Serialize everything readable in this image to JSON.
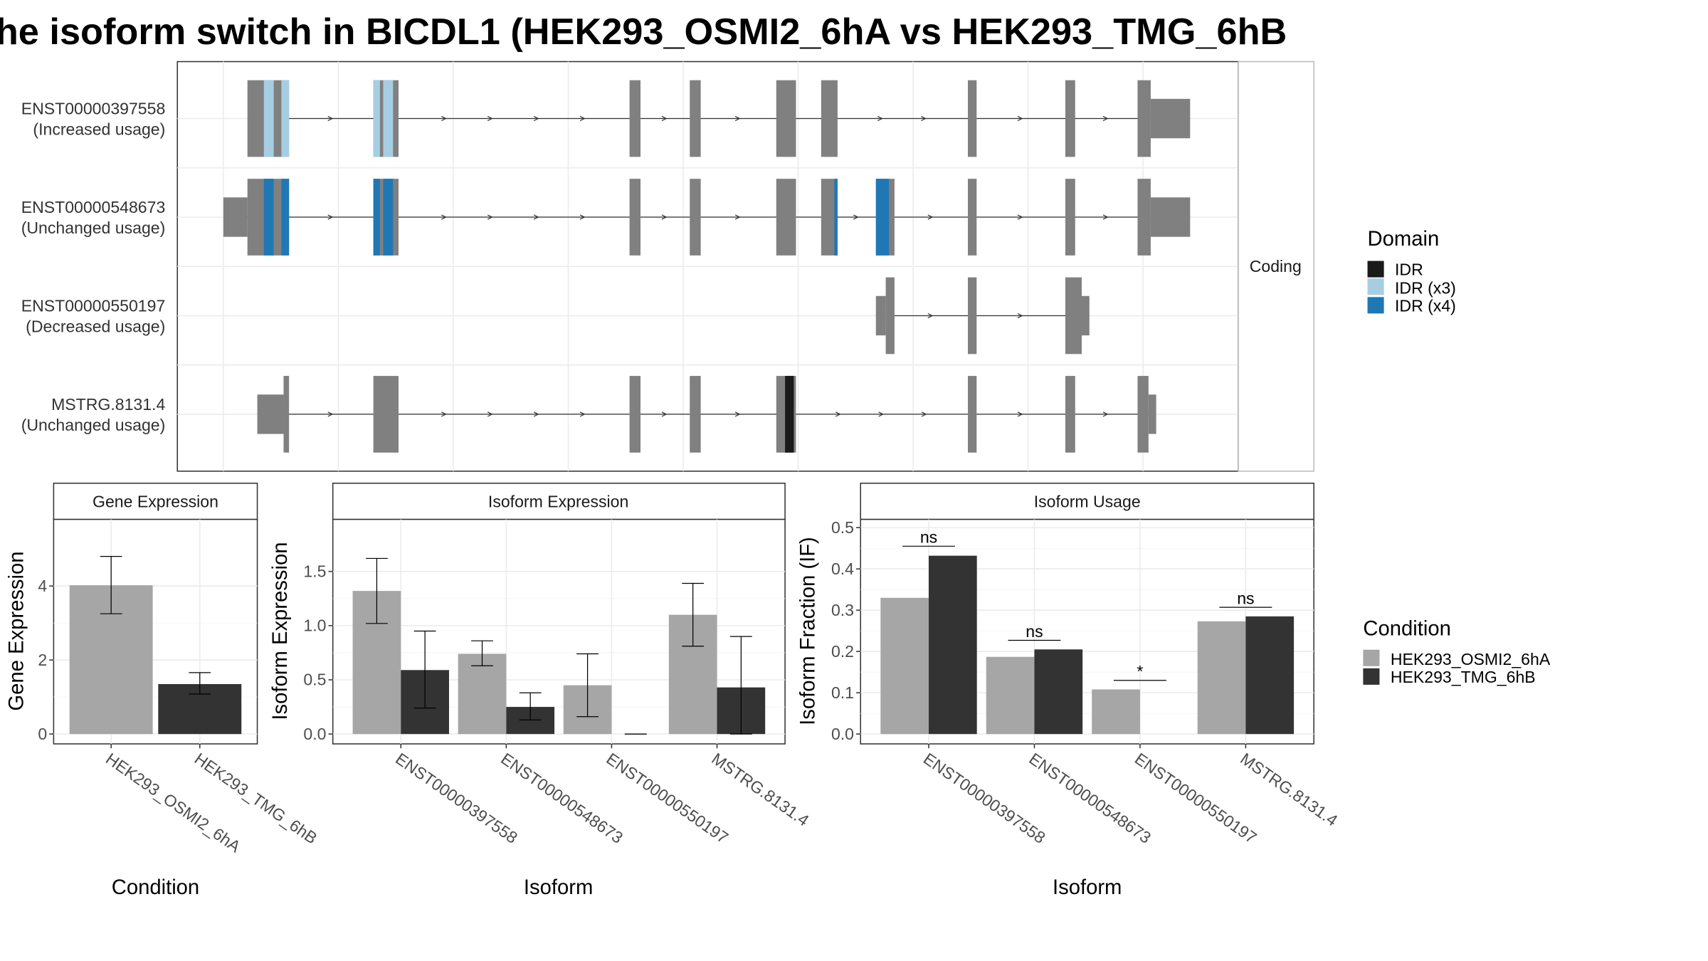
{
  "title": "he isoform switch in BICDL1 (HEK293_OSMI2_6hA vs HEK293_TMG_6hB",
  "colors": {
    "condition_a": "#a6a6a6",
    "condition_b": "#333333",
    "exon": "#808080",
    "idr": "#1a1a1a",
    "idr_x3": "#a6cee3",
    "idr_x4": "#1f78b4",
    "grid": "#ebebeb",
    "strip": "#ffffff"
  },
  "structure_panel": {
    "facet_label": "Coding",
    "tracks": [
      {
        "id": "ENST00000397558",
        "status": "(Increased usage)"
      },
      {
        "id": "ENST00000548673",
        "status": "(Unchanged usage)"
      },
      {
        "id": "ENST00000550197",
        "status": "(Decreased usage)"
      },
      {
        "id": "MSTRG.8131.4",
        "status": "(Unchanged usage)"
      }
    ]
  },
  "domain_legend": {
    "title": "Domain",
    "items": [
      {
        "label": "IDR",
        "color": "#1a1a1a"
      },
      {
        "label": "IDR (x3)",
        "color": "#a6cee3"
      },
      {
        "label": "IDR (x4)",
        "color": "#1f78b4"
      }
    ]
  },
  "condition_legend": {
    "title": "Condition",
    "items": [
      {
        "label": "HEK293_OSMI2_6hA",
        "color": "#a6a6a6"
      },
      {
        "label": "HEK293_TMG_6hB",
        "color": "#333333"
      }
    ]
  },
  "chart_data": [
    {
      "type": "bar",
      "title": "Gene Expression",
      "xlabel": "Condition",
      "ylabel": "Gene Expression",
      "categories": [
        "HEK293_OSMI2_6hA",
        "HEK293_TMG_6hB"
      ],
      "values": [
        4.02,
        1.35
      ],
      "errors": [
        [
          3.25,
          4.8
        ],
        [
          1.08,
          1.66
        ]
      ],
      "ylim": [
        0,
        5.8
      ],
      "yticks": [
        0,
        2,
        4
      ]
    },
    {
      "type": "bar",
      "title": "Isoform Expression",
      "xlabel": "Isoform",
      "ylabel": "Isoform Expression",
      "categories": [
        "ENST00000397558",
        "ENST00000548673",
        "ENST00000550197",
        "MSTRG.8131.4"
      ],
      "series": [
        {
          "name": "HEK293_OSMI2_6hA",
          "values": [
            1.32,
            0.74,
            0.45,
            1.1
          ],
          "errors": [
            [
              1.02,
              1.62
            ],
            [
              0.63,
              0.86
            ],
            [
              0.16,
              0.74
            ],
            [
              0.81,
              1.39
            ]
          ]
        },
        {
          "name": "HEK293_TMG_6hB",
          "values": [
            0.59,
            0.25,
            0.0,
            0.43
          ],
          "errors": [
            [
              0.24,
              0.95
            ],
            [
              0.13,
              0.38
            ],
            [
              0.0,
              0.0
            ],
            [
              0.0,
              0.9
            ]
          ]
        }
      ],
      "ylim": [
        0,
        1.98
      ],
      "yticks": [
        0.0,
        0.5,
        1.0,
        1.5
      ]
    },
    {
      "type": "bar",
      "title": "Isoform Usage",
      "xlabel": "Isoform",
      "ylabel": "Isoform Fraction (IF)",
      "categories": [
        "ENST00000397558",
        "ENST00000548673",
        "ENST00000550197",
        "MSTRG.8131.4"
      ],
      "series": [
        {
          "name": "HEK293_OSMI2_6hA",
          "values": [
            0.33,
            0.187,
            0.108,
            0.273
          ]
        },
        {
          "name": "HEK293_TMG_6hB",
          "values": [
            0.432,
            0.205,
            0.0,
            0.285
          ]
        }
      ],
      "significance": [
        {
          "label": "ns",
          "y": 0.455
        },
        {
          "label": "ns",
          "y": 0.227
        },
        {
          "label": "*",
          "y": 0.13
        },
        {
          "label": "ns",
          "y": 0.307
        }
      ],
      "ylim": [
        0,
        0.52
      ],
      "yticks": [
        0.0,
        0.1,
        0.2,
        0.3,
        0.4,
        0.5
      ]
    }
  ]
}
